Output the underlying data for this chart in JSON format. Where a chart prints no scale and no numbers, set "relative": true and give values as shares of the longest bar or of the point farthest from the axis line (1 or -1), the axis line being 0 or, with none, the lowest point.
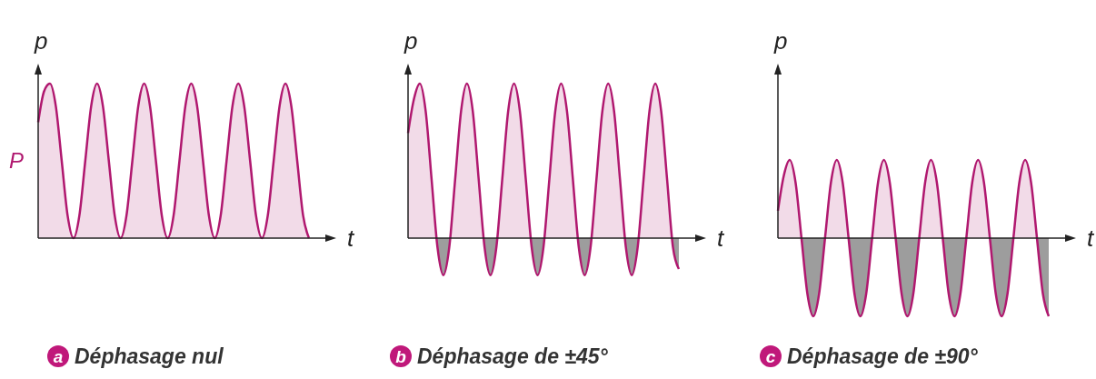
{
  "chart_data": [
    {
      "type": "area",
      "title": "a Déphasage nul",
      "xlabel": "t",
      "ylabel": "p",
      "annotations": [
        "P"
      ],
      "relative": true,
      "categories": [
        null,
        null,
        null,
        null,
        null,
        null,
        null,
        null,
        null,
        null,
        null,
        null,
        null,
        null,
        null,
        null,
        null,
        null,
        null,
        null,
        null,
        null,
        null,
        null,
        null,
        null,
        null,
        null,
        null,
        null,
        null,
        null,
        null,
        null,
        null,
        null,
        null,
        null,
        null,
        null,
        null,
        null,
        null,
        null,
        null,
        null,
        null
      ],
      "series": [
        {
          "color": "#b0186f",
          "values": [
            0.75,
            0.95,
            1,
            0.854,
            0.5,
            0.146,
            0,
            0.146,
            0.5,
            0.854,
            1,
            0.854,
            0.5,
            0.146,
            0,
            0.146,
            0.5,
            0.854,
            1,
            0.854,
            0.5,
            0.146,
            0,
            0.146,
            0.5,
            0.854,
            1,
            0.854,
            0.5,
            0.146,
            0,
            0.146,
            0.5,
            0.854,
            1,
            0.854,
            0.5,
            0.146,
            0,
            0.146,
            0.5,
            0.854,
            1,
            0.854,
            0.5,
            0.146,
            0
          ]
        }
      ]
    },
    {
      "type": "area",
      "title": "b Déphasage de ±45°",
      "xlabel": "t",
      "ylabel": "p",
      "relative": true,
      "categories": [
        null,
        null,
        null,
        null,
        null,
        null,
        null,
        null,
        null,
        null,
        null,
        null,
        null,
        null,
        null,
        null,
        null,
        null,
        null,
        null,
        null,
        null,
        null,
        null,
        null,
        null,
        null,
        null,
        null,
        null,
        null,
        null,
        null,
        null,
        null,
        null,
        null,
        null,
        null,
        null,
        null,
        null,
        null,
        null,
        null,
        null,
        null
      ],
      "series": [
        {
          "color": "#b0186f",
          "values": [
            0.68,
            0.9,
            1,
            0.82,
            0.38,
            -0.06,
            -0.24,
            -0.06,
            0.38,
            0.82,
            1,
            0.82,
            0.38,
            -0.06,
            -0.24,
            -0.06,
            0.38,
            0.82,
            1,
            0.82,
            0.38,
            -0.06,
            -0.24,
            -0.06,
            0.38,
            0.82,
            1,
            0.82,
            0.38,
            -0.06,
            -0.24,
            -0.06,
            0.38,
            0.82,
            1,
            0.82,
            0.38,
            -0.06,
            -0.24,
            -0.06,
            0.38,
            0.82,
            1,
            0.82,
            0.38,
            -0.06,
            -0.2
          ]
        }
      ]
    },
    {
      "type": "area",
      "title": "c Déphasage de ±90°",
      "xlabel": "t",
      "ylabel": "p",
      "relative": true,
      "categories": [
        null,
        null,
        null,
        null,
        null,
        null,
        null,
        null,
        null,
        null,
        null,
        null,
        null,
        null,
        null,
        null,
        null,
        null,
        null,
        null,
        null,
        null,
        null,
        null,
        null,
        null,
        null,
        null,
        null,
        null,
        null,
        null,
        null,
        null,
        null,
        null,
        null,
        null,
        null,
        null,
        null,
        null,
        null,
        null,
        null,
        null,
        null
      ],
      "series": [
        {
          "color": "#b0186f",
          "values": [
            0.35,
            0.8,
            1,
            0.71,
            0,
            -0.71,
            -1,
            -0.71,
            0,
            0.71,
            1,
            0.71,
            0,
            -0.71,
            -1,
            -0.71,
            0,
            0.71,
            1,
            0.71,
            0,
            -0.71,
            -1,
            -0.71,
            0,
            0.71,
            1,
            0.71,
            0,
            -0.71,
            -1,
            -0.71,
            0,
            0.71,
            1,
            0.71,
            0,
            -0.71,
            -1,
            -0.71,
            0,
            0.71,
            1,
            0.71,
            0,
            -0.71,
            -1
          ]
        }
      ]
    }
  ]
}
